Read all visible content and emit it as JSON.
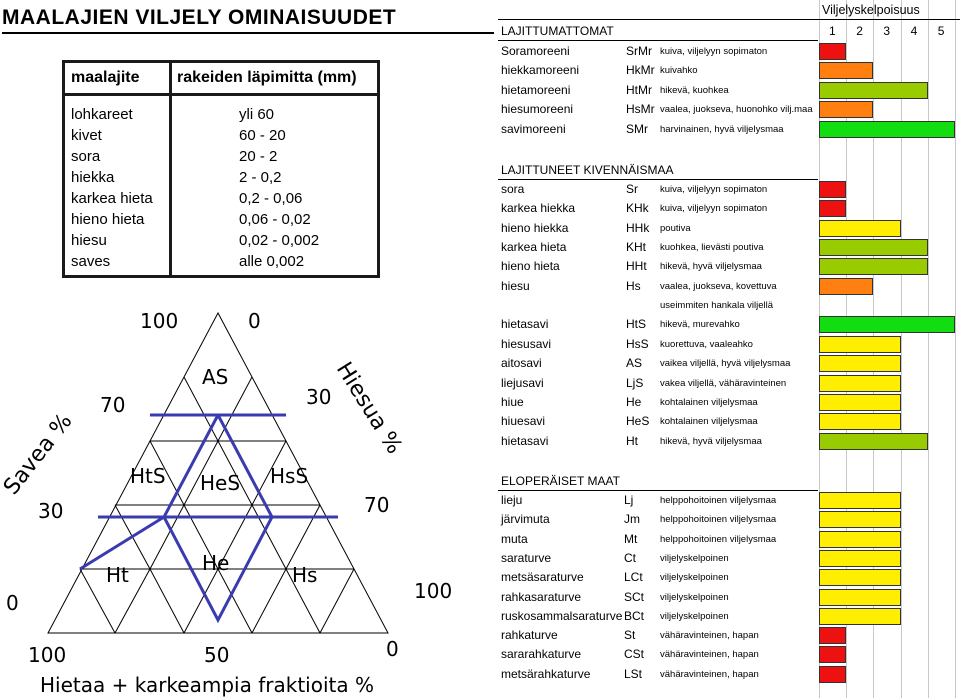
{
  "title": "MAALAJIEN  VILJELY OMINAISUUDET",
  "grain_table": {
    "headers": [
      "maalajite",
      "rakeiden läpimitta (mm)"
    ],
    "rows": [
      [
        "lohkareet",
        "yli 60"
      ],
      [
        "kivet",
        "60 - 20"
      ],
      [
        "sora",
        "20 - 2"
      ],
      [
        "hiekka",
        "2 - 0,2"
      ],
      [
        "karkea hieta",
        "0,2 - 0,06"
      ],
      [
        "hieno hieta",
        "0,06 - 0,02"
      ],
      [
        "hiesu",
        "0,02 - 0,002"
      ],
      [
        "saves",
        "alle 0,002"
      ]
    ]
  },
  "triangle": {
    "axis_savea": "Savea %",
    "axis_hiesua": "Hiesua %",
    "axis_hietaa": "Hietaa + karkeampia fraktioita  %",
    "tick_100_top": "100",
    "tick_0_top": "0",
    "tick_70_left": "70",
    "tick_30_right": "30",
    "tick_30_left": "30",
    "tick_70_right": "70",
    "tick_0_left": "0",
    "tick_100_right": "100",
    "tick_100_bottom": "100",
    "tick_50_bottom": "50",
    "tick_0_bottom": "0",
    "regions": [
      "AS",
      "HtS",
      "HeS",
      "HsS",
      "Ht",
      "He",
      "Hs"
    ]
  },
  "scale": {
    "title": "Viljelyskelpoisuus",
    "ticks": [
      "1",
      "2",
      "3",
      "4",
      "5"
    ]
  },
  "colors": {
    "1": "#ee1111",
    "2": "#ff7f10",
    "3": "#ffee00",
    "4": "#99cc00",
    "5": "#11dd11"
  },
  "sections": [
    {
      "title": "LAJITTUMATTOMAT",
      "rows": [
        {
          "name": "Soramoreeni",
          "abbr": "SrMr",
          "desc": "kuiva, viljelyyn sopimaton",
          "score": 1
        },
        {
          "name": "hiekkamoreeni",
          "abbr": "HkMr",
          "desc": "kuivahko",
          "score": 2
        },
        {
          "name": "hietamoreeni",
          "abbr": "HtMr",
          "desc": "hikevä, kuohkea",
          "score": 4
        },
        {
          "name": "hiesumoreeni",
          "abbr": "HsMr",
          "desc": "vaalea, juokseva, huonohko vilj.maa",
          "score": 2
        },
        {
          "name": "savimoreeni",
          "abbr": "SMr",
          "desc": "harvinainen, hyvä viljelysmaa",
          "score": 5
        }
      ]
    },
    {
      "title": "LAJITTUNEET KIVENNÄISMAA",
      "rows": [
        {
          "name": "sora",
          "abbr": "Sr",
          "desc": "kuiva, viljelyyn sopimaton",
          "score": 1
        },
        {
          "name": "karkea hiekka",
          "abbr": "KHk",
          "desc": "kuiva, viljelyyn sopimaton",
          "score": 1
        },
        {
          "name": "hieno hiekka",
          "abbr": "HHk",
          "desc": "poutiva",
          "score": 3
        },
        {
          "name": "karkea hieta",
          "abbr": "KHt",
          "desc": "kuohkea, lievästi poutiva",
          "score": 4
        },
        {
          "name": "hieno hieta",
          "abbr": "HHt",
          "desc": "hikevä, hyvä viljelysmaa",
          "score": 4
        },
        {
          "name": "hiesu",
          "abbr": "Hs",
          "desc": "vaalea, juokseva, kovettuva",
          "score": 2
        },
        {
          "name": "",
          "abbr": "",
          "desc": "useimmiten hankala viljellä",
          "score": 0
        },
        {
          "name": "hietasavi",
          "abbr": "HtS",
          "desc": "hikevä, murevahko",
          "score": 5
        },
        {
          "name": "hiesusavi",
          "abbr": "HsS",
          "desc": "kuorettuva, vaaleahko",
          "score": 3
        },
        {
          "name": "aitosavi",
          "abbr": "AS",
          "desc": "vaikea viljellä, hyvä viljelysmaa",
          "score": 3
        },
        {
          "name": "liejusavi",
          "abbr": "LjS",
          "desc": "vakea viljellä, vähäravinteinen",
          "score": 3
        },
        {
          "name": "hiue",
          "abbr": "He",
          "desc": "kohtalainen viljelysmaa",
          "score": 3
        },
        {
          "name": "hiuesavi",
          "abbr": "HeS",
          "desc": "kohtalainen viljelysmaa",
          "score": 3
        },
        {
          "name": "hietasavi",
          "abbr": "Ht",
          "desc": "hikevä, hyvä viljelysmaa",
          "score": 4
        }
      ]
    },
    {
      "title": "ELOPERÄISET MAAT",
      "rows": [
        {
          "name": "lieju",
          "abbr": "Lj",
          "desc": "helppohoitoinen viljelysmaa",
          "score": 3
        },
        {
          "name": "järvimuta",
          "abbr": "Jm",
          "desc": "helppohoitoinen viljelysmaa",
          "score": 3
        },
        {
          "name": "muta",
          "abbr": "Mt",
          "desc": "helppohoitoinen viljelysmaa",
          "score": 3
        },
        {
          "name": "saraturve",
          "abbr": "Ct",
          "desc": "viljelyskelpoinen",
          "score": 3
        },
        {
          "name": "metsäsaraturve",
          "abbr": "LCt",
          "desc": "viljelyskelpoinen",
          "score": 3
        },
        {
          "name": "rahkasaraturve",
          "abbr": "SCt",
          "desc": "viljelyskelpoinen",
          "score": 3
        },
        {
          "name": "ruskosammalsaraturve",
          "abbr": "BCt",
          "desc": "viljelyskelpoinen",
          "score": 3
        },
        {
          "name": "rahkaturve",
          "abbr": "St",
          "desc": "vähäravinteinen, hapan",
          "score": 1
        },
        {
          "name": "sararahkaturve",
          "abbr": "CSt",
          "desc": "vähäravinteinen, hapan",
          "score": 1
        },
        {
          "name": "metsärahkaturve",
          "abbr": "LSt",
          "desc": "vähäravinteinen, hapan",
          "score": 1
        }
      ]
    }
  ]
}
